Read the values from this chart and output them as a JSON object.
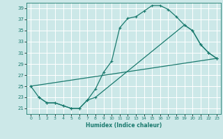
{
  "xlabel": "Humidex (Indice chaleur)",
  "bg_color": "#cce8e8",
  "grid_color": "#ffffff",
  "line_color": "#1a7a6e",
  "xlim": [
    -0.5,
    23.5
  ],
  "ylim": [
    20.0,
    40.0
  ],
  "yticks": [
    21,
    23,
    25,
    27,
    29,
    31,
    33,
    35,
    37,
    39
  ],
  "xticks": [
    0,
    1,
    2,
    3,
    4,
    5,
    6,
    7,
    8,
    9,
    10,
    11,
    12,
    13,
    14,
    15,
    16,
    17,
    18,
    19,
    20,
    21,
    22,
    23
  ],
  "line1_x": [
    0,
    1,
    2,
    3,
    4,
    5,
    6,
    7,
    8,
    9,
    10,
    11,
    12,
    13,
    14,
    15,
    16,
    17,
    18,
    19,
    20,
    21,
    22,
    23
  ],
  "line1_y": [
    25,
    23,
    22,
    22,
    21.5,
    21,
    21,
    22.5,
    24.5,
    27.5,
    29.5,
    35.5,
    37.2,
    37.5,
    38.5,
    39.5,
    39.5,
    38.8,
    37.5,
    36.0,
    35.0,
    32.5,
    31.0,
    30.0
  ],
  "line2_x": [
    1,
    2,
    3,
    4,
    5,
    6,
    7,
    8,
    19,
    20,
    21,
    22,
    23
  ],
  "line2_y": [
    23,
    22,
    22,
    21.5,
    21,
    21,
    22.5,
    23,
    36.0,
    35.0,
    32.5,
    31.0,
    30.0
  ],
  "line3_x": [
    0,
    23
  ],
  "line3_y": [
    25,
    30.0
  ]
}
